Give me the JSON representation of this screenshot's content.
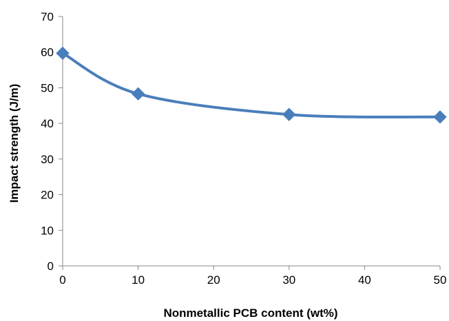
{
  "chart_data": {
    "type": "line",
    "title": "",
    "xlabel": "Nonmetallic PCB content (wt%)",
    "ylabel": "Impact strength (J/m)",
    "xlim": [
      0,
      50
    ],
    "ylim": [
      0,
      70
    ],
    "xticks": [
      0,
      10,
      20,
      30,
      40,
      50
    ],
    "yticks": [
      0,
      10,
      20,
      30,
      40,
      50,
      60,
      70
    ],
    "xtick_labels": [
      "0",
      "10",
      "20",
      "30",
      "40",
      "50"
    ],
    "ytick_labels": [
      "0",
      "10",
      "20",
      "30",
      "40",
      "50",
      "60",
      "70"
    ],
    "grid": false,
    "legend": "none",
    "smooth": true,
    "marker": "diamond",
    "series": [
      {
        "x": [
          0,
          10,
          30,
          50
        ],
        "values": [
          59.7,
          48.3,
          42.5,
          41.8
        ],
        "color": "#4A7EBB"
      }
    ]
  }
}
